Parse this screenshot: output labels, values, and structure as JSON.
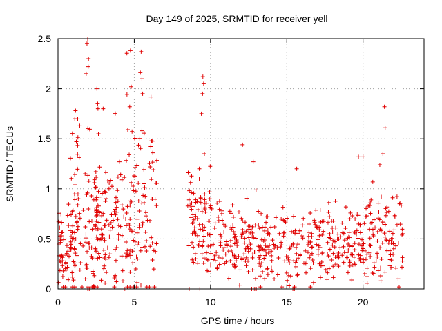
{
  "chart_data": {
    "type": "scatter",
    "title": "Day 149 of 2025, SRMTID for receiver yell",
    "xlabel": "GPS time / hours",
    "ylabel": "SRMTID / TECUs",
    "xlim": [
      0,
      24
    ],
    "ylim": [
      0,
      2.5
    ],
    "xticks": [
      0,
      5,
      10,
      15,
      20
    ],
    "yticks": [
      0,
      0.5,
      1,
      1.5,
      2,
      2.5
    ],
    "xtick_labels": [
      "0",
      "5",
      "10",
      "15",
      "20"
    ],
    "ytick_labels": [
      "0",
      "0.5",
      "1",
      "1.5",
      "2",
      "2.5"
    ],
    "grid": true,
    "marker": "+",
    "color": "#e00000",
    "segments": [
      {
        "start": 0.0,
        "end": 1.2,
        "base": 0.35,
        "spread": 0.45,
        "count": 70
      },
      {
        "start": 0.8,
        "end": 2.6,
        "base": 0.7,
        "spread": 0.8,
        "count": 95
      },
      {
        "start": 2.4,
        "end": 4.5,
        "base": 0.6,
        "spread": 0.6,
        "count": 110
      },
      {
        "start": 4.4,
        "end": 6.5,
        "base": 0.8,
        "spread": 0.9,
        "count": 110
      },
      {
        "start": 8.5,
        "end": 10.0,
        "base": 0.6,
        "spread": 0.55,
        "count": 85
      },
      {
        "start": 10.0,
        "end": 12.8,
        "base": 0.45,
        "spread": 0.35,
        "count": 120
      },
      {
        "start": 12.8,
        "end": 15.8,
        "base": 0.4,
        "spread": 0.35,
        "count": 120
      },
      {
        "start": 15.8,
        "end": 19.8,
        "base": 0.45,
        "spread": 0.35,
        "count": 160
      },
      {
        "start": 19.8,
        "end": 22.7,
        "base": 0.5,
        "spread": 0.45,
        "count": 120
      }
    ],
    "points": [
      [
        1.1,
        1.7
      ],
      [
        1.15,
        1.78
      ],
      [
        1.2,
        1.47
      ],
      [
        1.85,
        2.15
      ],
      [
        1.9,
        2.45
      ],
      [
        1.95,
        2.5
      ],
      [
        2.0,
        2.3
      ],
      [
        1.98,
        2.22
      ],
      [
        2.55,
        2.0
      ],
      [
        2.6,
        1.85
      ],
      [
        2.62,
        1.8
      ],
      [
        2.65,
        1.55
      ],
      [
        4.75,
        2.38
      ],
      [
        4.8,
        2.02
      ],
      [
        4.7,
        1.82
      ],
      [
        5.45,
        2.37
      ],
      [
        5.4,
        2.16
      ],
      [
        5.5,
        2.1
      ],
      [
        5.55,
        1.95
      ],
      [
        5.5,
        1.58
      ],
      [
        9.5,
        2.12
      ],
      [
        9.55,
        2.05
      ],
      [
        9.48,
        1.95
      ],
      [
        9.4,
        1.75
      ],
      [
        9.6,
        1.35
      ],
      [
        12.1,
        1.44
      ],
      [
        12.8,
        1.27
      ],
      [
        15.65,
        1.2
      ],
      [
        19.7,
        1.32
      ],
      [
        20.0,
        1.32
      ],
      [
        21.4,
        1.82
      ],
      [
        21.45,
        1.61
      ],
      [
        21.1,
        1.24
      ],
      [
        21.3,
        1.35
      ],
      [
        1.95,
        0.0
      ],
      [
        2.05,
        0.0
      ],
      [
        4.35,
        0.0
      ],
      [
        4.45,
        0.0
      ],
      [
        8.6,
        0.0
      ],
      [
        9.3,
        0.0
      ],
      [
        12.7,
        0.0
      ],
      [
        12.8,
        0.0
      ],
      [
        12.9,
        0.0
      ],
      [
        13.0,
        0.0
      ],
      [
        15.4,
        0.0
      ],
      [
        15.5,
        0.0
      ],
      [
        15.6,
        0.0
      ]
    ]
  }
}
